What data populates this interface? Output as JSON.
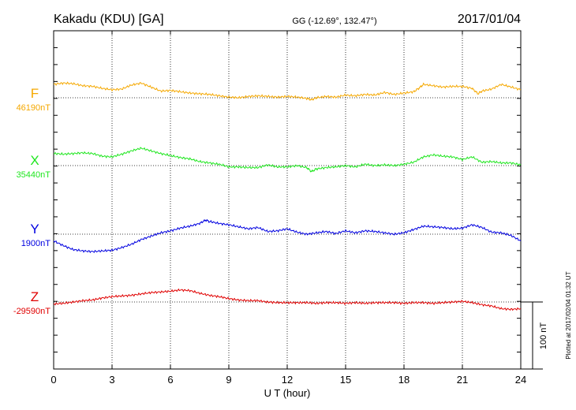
{
  "header": {
    "station": "Kakadu (KDU)  [GA]",
    "coords": "GG (-12.69°, 132.47°)",
    "date": "2017/01/04"
  },
  "footer_note": "Plotted at 2017/02/04 01:32 UT",
  "chart_data": {
    "type": "line",
    "xlabel": "U T (hour)",
    "xlim": [
      0,
      24
    ],
    "xticks": [
      "0",
      "3",
      "6",
      "9",
      "12",
      "15",
      "18",
      "21",
      "24"
    ],
    "scale_bar": "100 nT",
    "series": [
      {
        "name": "F",
        "baseline_label": "46190nT",
        "color": "#f5a800",
        "x": [
          0,
          0.5,
          1,
          1.5,
          2,
          2.5,
          3,
          3.5,
          4,
          4.5,
          5,
          5.5,
          6,
          6.5,
          7,
          7.5,
          8,
          8.5,
          9,
          9.5,
          10,
          10.5,
          11,
          11.5,
          12,
          12.5,
          13,
          13.25,
          13.5,
          14,
          14.5,
          15,
          15.5,
          16,
          16.5,
          17,
          17.5,
          18,
          18.5,
          18.8,
          19,
          19.5,
          20,
          20.5,
          21,
          21.5,
          21.8,
          22,
          22.5,
          23,
          23.5,
          24
        ],
        "y": [
          20,
          22,
          21,
          18,
          17,
          14,
          12,
          13,
          19,
          22,
          16,
          10,
          11,
          9,
          7,
          6,
          5,
          3,
          1,
          0,
          2,
          3,
          2,
          1,
          2,
          1,
          -1,
          -3,
          0,
          2,
          1,
          4,
          3,
          5,
          4,
          8,
          5,
          7,
          9,
          15,
          20,
          18,
          16,
          17,
          17,
          14,
          6,
          10,
          13,
          20,
          16,
          12
        ]
      },
      {
        "name": "X",
        "baseline_label": "35440nT",
        "color": "#1ee61e",
        "x": [
          0,
          0.5,
          1,
          1.5,
          2,
          2.5,
          3,
          3.5,
          4,
          4.5,
          5,
          5.5,
          6,
          6.5,
          7,
          7.5,
          8,
          8.5,
          9,
          9.5,
          10,
          10.5,
          11,
          11.5,
          12,
          12.5,
          13,
          13.25,
          13.5,
          14,
          14.5,
          15,
          15.5,
          16,
          16.5,
          17,
          17.5,
          18,
          18.5,
          19,
          19.5,
          20,
          20.5,
          21,
          21.5,
          22,
          22.5,
          23,
          23.5,
          24
        ],
        "y": [
          18,
          17,
          18,
          19,
          18,
          14,
          13,
          17,
          22,
          26,
          22,
          18,
          15,
          12,
          10,
          6,
          4,
          2,
          -2,
          -2,
          -3,
          -3,
          1,
          -2,
          -2,
          0,
          -3,
          -9,
          -5,
          -3,
          -2,
          0,
          -2,
          2,
          0,
          1,
          0,
          2,
          5,
          13,
          16,
          14,
          13,
          9,
          13,
          5,
          6,
          4,
          4,
          1
        ]
      },
      {
        "name": "Y",
        "baseline_label": "1900nT",
        "color": "#0000e0",
        "x": [
          0,
          0.5,
          1,
          1.5,
          2,
          2.5,
          3,
          3.5,
          4,
          4.5,
          5,
          5.5,
          6,
          6.5,
          7,
          7.5,
          7.8,
          8,
          8.5,
          9,
          9.5,
          10,
          10.5,
          11,
          11.5,
          12,
          12.5,
          13,
          13.5,
          14,
          14.5,
          15,
          15.5,
          16,
          16.5,
          17,
          17.5,
          18,
          18.5,
          19,
          19.5,
          20,
          20.5,
          21,
          21.5,
          22,
          22.5,
          23,
          23.5,
          24
        ],
        "y": [
          -10,
          -17,
          -23,
          -25,
          -26,
          -25,
          -24,
          -20,
          -15,
          -8,
          -3,
          2,
          5,
          9,
          12,
          16,
          21,
          19,
          16,
          14,
          11,
          8,
          10,
          4,
          5,
          8,
          3,
          0,
          2,
          4,
          1,
          5,
          2,
          5,
          4,
          2,
          0,
          2,
          7,
          12,
          11,
          10,
          8,
          9,
          14,
          10,
          3,
          2,
          -2,
          -10
        ]
      },
      {
        "name": "Z",
        "baseline_label": "-29590nT",
        "color": "#e00000",
        "x": [
          0,
          0.5,
          1,
          1.5,
          2,
          2.5,
          3,
          3.5,
          4,
          4.5,
          5,
          5.5,
          6,
          6.5,
          7,
          7.5,
          8,
          8.5,
          9,
          9.5,
          10,
          10.5,
          11,
          11.5,
          12,
          12.5,
          13,
          13.5,
          14,
          14.5,
          15,
          15.5,
          16,
          16.5,
          17,
          17.5,
          18,
          18.5,
          19,
          19.5,
          20,
          20.5,
          21,
          21.5,
          22,
          22.5,
          23,
          23.5,
          24
        ],
        "y": [
          -3,
          -2,
          0,
          2,
          3,
          6,
          8,
          9,
          10,
          12,
          14,
          15,
          16,
          18,
          17,
          13,
          10,
          8,
          5,
          3,
          2,
          2,
          0,
          -1,
          -1,
          -1,
          -1,
          -2,
          -1,
          -1,
          -2,
          -1,
          -2,
          -1,
          -1,
          -1,
          -2,
          -1,
          -1,
          -2,
          -1,
          0,
          1,
          -1,
          -4,
          -6,
          -10,
          -11,
          -10
        ]
      }
    ]
  }
}
